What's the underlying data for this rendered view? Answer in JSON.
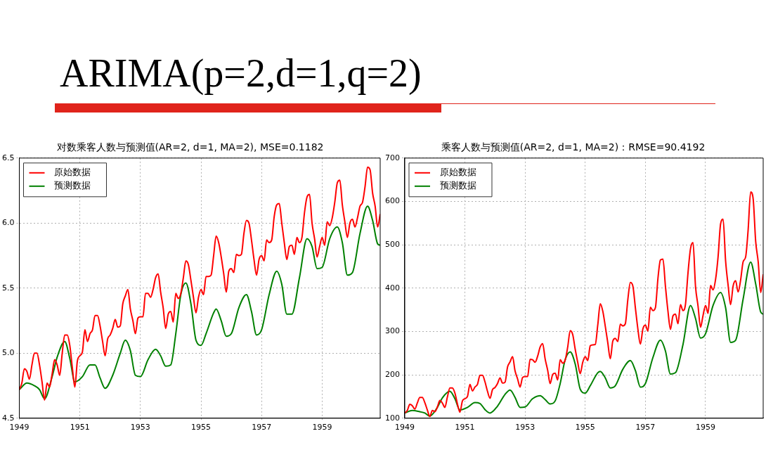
{
  "chart_data": [
    {
      "type": "line",
      "title": "对数乘客人数与预测值(AR=2, d=1, MA=2), MSE=0.1182",
      "annotations": [
        "ARIMA(p=2,d=1,q=2)"
      ],
      "x": [
        "1949-01",
        "1949-02",
        "1949-03",
        "1949-04",
        "1949-05",
        "1949-06",
        "1949-07",
        "1949-08",
        "1949-09",
        "1949-10",
        "1949-11",
        "1949-12",
        "1950-01",
        "1950-02",
        "1950-03",
        "1950-04",
        "1950-05",
        "1950-06",
        "1950-07",
        "1950-08",
        "1950-09",
        "1950-10",
        "1950-11",
        "1950-12",
        "1951-01",
        "1951-02",
        "1951-03",
        "1951-04",
        "1951-05",
        "1951-06",
        "1951-07",
        "1951-08",
        "1951-09",
        "1951-10",
        "1951-11",
        "1951-12",
        "1952-01",
        "1952-02",
        "1952-03",
        "1952-04",
        "1952-05",
        "1952-06",
        "1952-07",
        "1952-08",
        "1952-09",
        "1952-10",
        "1952-11",
        "1952-12",
        "1953-01",
        "1953-02",
        "1953-03",
        "1953-04",
        "1953-05",
        "1953-06",
        "1953-07",
        "1953-08",
        "1953-09",
        "1953-10",
        "1953-11",
        "1953-12",
        "1954-01",
        "1954-02",
        "1954-03",
        "1954-04",
        "1954-05",
        "1954-06",
        "1954-07",
        "1954-08",
        "1954-09",
        "1954-10",
        "1954-11",
        "1954-12",
        "1955-01",
        "1955-02",
        "1955-03",
        "1955-04",
        "1955-05",
        "1955-06",
        "1955-07",
        "1955-08",
        "1955-09",
        "1955-10",
        "1955-11",
        "1955-12",
        "1956-01",
        "1956-02",
        "1956-03",
        "1956-04",
        "1956-05",
        "1956-06",
        "1956-07",
        "1956-08",
        "1956-09",
        "1956-10",
        "1956-11",
        "1956-12",
        "1957-01",
        "1957-02",
        "1957-03",
        "1957-04",
        "1957-05",
        "1957-06",
        "1957-07",
        "1957-08",
        "1957-09",
        "1957-10",
        "1957-11",
        "1957-12",
        "1958-01",
        "1958-02",
        "1958-03",
        "1958-04",
        "1958-05",
        "1958-06",
        "1958-07",
        "1958-08",
        "1958-09",
        "1958-10",
        "1958-11",
        "1958-12",
        "1959-01",
        "1959-02",
        "1959-03",
        "1959-04",
        "1959-05",
        "1959-06",
        "1959-07",
        "1959-08",
        "1959-09",
        "1959-10",
        "1959-11",
        "1959-12",
        "1960-01",
        "1960-02",
        "1960-03",
        "1960-04",
        "1960-05",
        "1960-06",
        "1960-07",
        "1960-08",
        "1960-09",
        "1960-10",
        "1960-11",
        "1960-12"
      ],
      "series": [
        {
          "name": "原始数据",
          "color": "#ff0000",
          "values": [
            4.72,
            4.77,
            4.88,
            4.86,
            4.8,
            4.91,
            5.0,
            5.0,
            4.91,
            4.78,
            4.64,
            4.77,
            4.74,
            4.84,
            4.95,
            4.91,
            4.83,
            5.0,
            5.14,
            5.14,
            5.06,
            4.89,
            4.74,
            4.94,
            4.98,
            5.01,
            5.18,
            5.09,
            5.15,
            5.18,
            5.29,
            5.29,
            5.21,
            5.09,
            4.98,
            5.11,
            5.14,
            5.19,
            5.26,
            5.2,
            5.21,
            5.38,
            5.44,
            5.49,
            5.34,
            5.25,
            5.15,
            5.27,
            5.28,
            5.28,
            5.46,
            5.46,
            5.43,
            5.49,
            5.58,
            5.61,
            5.47,
            5.35,
            5.19,
            5.3,
            5.32,
            5.24,
            5.46,
            5.42,
            5.46,
            5.58,
            5.71,
            5.68,
            5.56,
            5.43,
            5.31,
            5.43,
            5.49,
            5.45,
            5.59,
            5.59,
            5.6,
            5.75,
            5.9,
            5.85,
            5.74,
            5.61,
            5.47,
            5.63,
            5.65,
            5.62,
            5.76,
            5.75,
            5.76,
            5.92,
            6.02,
            6.0,
            5.87,
            5.72,
            5.6,
            5.72,
            5.75,
            5.71,
            5.87,
            5.85,
            5.87,
            6.05,
            6.14,
            6.15,
            6.0,
            5.85,
            5.72,
            5.82,
            5.83,
            5.76,
            5.89,
            5.85,
            5.89,
            6.08,
            6.2,
            6.22,
            6.0,
            5.88,
            5.74,
            5.82,
            5.89,
            5.83,
            6.01,
            5.98,
            6.04,
            6.16,
            6.31,
            6.33,
            6.14,
            6.01,
            5.89,
            6.0,
            6.03,
            5.97,
            6.04,
            6.13,
            6.16,
            6.28,
            6.43,
            6.41,
            6.23,
            6.13,
            5.97,
            6.07
          ]
        },
        {
          "name": "预测数据",
          "color": "#008000",
          "x": [
            "1949-01",
            "1949-04",
            "1949-07",
            "1949-09",
            "1949-11",
            "1950-02",
            "1950-04",
            "1950-07",
            "1950-09",
            "1950-11",
            "1951-02",
            "1951-05",
            "1951-07",
            "1951-09",
            "1951-11",
            "1952-02",
            "1952-05",
            "1952-07",
            "1952-09",
            "1952-11",
            "1953-01",
            "1953-04",
            "1953-07",
            "1953-09",
            "1953-11",
            "1954-01",
            "1954-03",
            "1954-05",
            "1954-07",
            "1954-09",
            "1954-11",
            "1955-01",
            "1955-03",
            "1955-06",
            "1955-07",
            "1955-09",
            "1955-11",
            "1956-01",
            "1956-04",
            "1956-07",
            "1956-09",
            "1956-11",
            "1957-01",
            "1957-04",
            "1957-07",
            "1957-09",
            "1957-11",
            "1958-01",
            "1958-04",
            "1958-07",
            "1958-09",
            "1958-11",
            "1959-01",
            "1959-04",
            "1959-07",
            "1959-09",
            "1959-11",
            "1960-01",
            "1960-04",
            "1960-07",
            "1960-09",
            "1960-11",
            "1960-12"
          ],
          "values": [
            4.72,
            4.77,
            4.75,
            4.72,
            4.65,
            4.82,
            4.97,
            5.09,
            4.96,
            4.78,
            4.82,
            4.91,
            4.91,
            4.81,
            4.73,
            4.83,
            5.0,
            5.1,
            5.02,
            4.83,
            4.82,
            4.95,
            5.03,
            4.98,
            4.9,
            4.91,
            5.15,
            5.45,
            5.54,
            5.38,
            5.1,
            5.06,
            5.15,
            5.31,
            5.34,
            5.25,
            5.13,
            5.15,
            5.35,
            5.45,
            5.32,
            5.14,
            5.18,
            5.45,
            5.63,
            5.53,
            5.3,
            5.3,
            5.58,
            5.88,
            5.82,
            5.65,
            5.66,
            5.88,
            5.97,
            5.85,
            5.6,
            5.62,
            5.92,
            6.13,
            6.02,
            5.84,
            5.83
          ]
        }
      ],
      "xlim": [
        "1949-01",
        "1960-12"
      ],
      "xticks": [
        "1949",
        "1951",
        "1953",
        "1955",
        "1957",
        "1959"
      ],
      "ylim": [
        4.5,
        6.5
      ],
      "yticks": [
        4.5,
        {
          "value": 5,
          "label": "5.0"
        },
        5.5,
        {
          "value": 6,
          "label": "6.0"
        },
        6.5
      ],
      "grid": true,
      "legend": "top left",
      "marker": "none",
      "line_style": "solid"
    },
    {
      "type": "line",
      "title": "乘客人数与预测值(AR=2, d=1, MA=2)：RMSE=90.4192",
      "x": [
        "1949-01",
        "1949-02",
        "1949-03",
        "1949-04",
        "1949-05",
        "1949-06",
        "1949-07",
        "1949-08",
        "1949-09",
        "1949-10",
        "1949-11",
        "1949-12",
        "1950-01",
        "1950-02",
        "1950-03",
        "1950-04",
        "1950-05",
        "1950-06",
        "1950-07",
        "1950-08",
        "1950-09",
        "1950-10",
        "1950-11",
        "1950-12",
        "1951-01",
        "1951-02",
        "1951-03",
        "1951-04",
        "1951-05",
        "1951-06",
        "1951-07",
        "1951-08",
        "1951-09",
        "1951-10",
        "1951-11",
        "1951-12",
        "1952-01",
        "1952-02",
        "1952-03",
        "1952-04",
        "1952-05",
        "1952-06",
        "1952-07",
        "1952-08",
        "1952-09",
        "1952-10",
        "1952-11",
        "1952-12",
        "1953-01",
        "1953-02",
        "1953-03",
        "1953-04",
        "1953-05",
        "1953-06",
        "1953-07",
        "1953-08",
        "1953-09",
        "1953-10",
        "1953-11",
        "1953-12",
        "1954-01",
        "1954-02",
        "1954-03",
        "1954-04",
        "1954-05",
        "1954-06",
        "1954-07",
        "1954-08",
        "1954-09",
        "1954-10",
        "1954-11",
        "1954-12",
        "1955-01",
        "1955-02",
        "1955-03",
        "1955-04",
        "1955-05",
        "1955-06",
        "1955-07",
        "1955-08",
        "1955-09",
        "1955-10",
        "1955-11",
        "1955-12",
        "1956-01",
        "1956-02",
        "1956-03",
        "1956-04",
        "1956-05",
        "1956-06",
        "1956-07",
        "1956-08",
        "1956-09",
        "1956-10",
        "1956-11",
        "1956-12",
        "1957-01",
        "1957-02",
        "1957-03",
        "1957-04",
        "1957-05",
        "1957-06",
        "1957-07",
        "1957-08",
        "1957-09",
        "1957-10",
        "1957-11",
        "1957-12",
        "1958-01",
        "1958-02",
        "1958-03",
        "1958-04",
        "1958-05",
        "1958-06",
        "1958-07",
        "1958-08",
        "1958-09",
        "1958-10",
        "1958-11",
        "1958-12",
        "1959-01",
        "1959-02",
        "1959-03",
        "1959-04",
        "1959-05",
        "1959-06",
        "1959-07",
        "1959-08",
        "1959-09",
        "1959-10",
        "1959-11",
        "1959-12",
        "1960-01",
        "1960-02",
        "1960-03",
        "1960-04",
        "1960-05",
        "1960-06",
        "1960-07",
        "1960-08",
        "1960-09",
        "1960-10",
        "1960-11",
        "1960-12"
      ],
      "series": [
        {
          "name": "原始数据",
          "color": "#ff0000",
          "values": [
            112,
            118,
            132,
            129,
            121,
            135,
            148,
            148,
            136,
            119,
            104,
            118,
            115,
            126,
            141,
            135,
            125,
            149,
            170,
            170,
            158,
            133,
            114,
            140,
            145,
            150,
            178,
            163,
            172,
            178,
            199,
            199,
            184,
            162,
            146,
            166,
            171,
            180,
            193,
            181,
            183,
            218,
            230,
            242,
            209,
            191,
            172,
            194,
            196,
            196,
            236,
            235,
            229,
            243,
            264,
            272,
            237,
            211,
            180,
            201,
            204,
            188,
            235,
            227,
            234,
            264,
            302,
            293,
            259,
            229,
            203,
            229,
            242,
            233,
            267,
            269,
            270,
            315,
            364,
            347,
            312,
            274,
            237,
            278,
            284,
            277,
            317,
            313,
            318,
            374,
            413,
            405,
            355,
            306,
            271,
            306,
            315,
            301,
            356,
            348,
            355,
            422,
            465,
            467,
            404,
            347,
            305,
            336,
            340,
            318,
            362,
            348,
            363,
            435,
            491,
            505,
            404,
            359,
            310,
            337,
            360,
            342,
            406,
            396,
            420,
            472,
            548,
            559,
            463,
            407,
            362,
            405,
            417,
            391,
            419,
            461,
            472,
            535,
            622,
            606,
            508,
            461,
            390,
            432
          ]
        },
        {
          "name": "预测数据",
          "color": "#008000",
          "x": [
            "1949-01",
            "1949-04",
            "1949-07",
            "1949-09",
            "1949-11",
            "1950-02",
            "1950-04",
            "1950-07",
            "1950-09",
            "1950-11",
            "1951-02",
            "1951-05",
            "1951-07",
            "1951-09",
            "1951-11",
            "1952-02",
            "1952-05",
            "1952-07",
            "1952-09",
            "1952-11",
            "1953-01",
            "1953-04",
            "1953-07",
            "1953-09",
            "1953-11",
            "1954-01",
            "1954-03",
            "1954-05",
            "1954-07",
            "1954-09",
            "1954-11",
            "1955-01",
            "1955-03",
            "1955-06",
            "1955-07",
            "1955-09",
            "1955-11",
            "1956-01",
            "1956-04",
            "1956-07",
            "1956-09",
            "1956-11",
            "1957-01",
            "1957-04",
            "1957-07",
            "1957-09",
            "1957-11",
            "1958-01",
            "1958-04",
            "1958-07",
            "1958-09",
            "1958-11",
            "1959-01",
            "1959-04",
            "1959-07",
            "1959-09",
            "1959-11",
            "1960-01",
            "1960-04",
            "1960-07",
            "1960-09",
            "1960-11",
            "1960-12"
          ],
          "values": [
            112,
            118,
            115,
            112,
            105,
            125,
            147,
            162,
            145,
            119,
            125,
            136,
            134,
            120,
            112,
            128,
            155,
            165,
            148,
            125,
            126,
            145,
            152,
            143,
            133,
            140,
            180,
            235,
            253,
            225,
            167,
            158,
            175,
            205,
            208,
            193,
            170,
            175,
            213,
            233,
            210,
            172,
            180,
            240,
            280,
            255,
            202,
            205,
            270,
            360,
            330,
            285,
            295,
            360,
            390,
            355,
            275,
            280,
            375,
            460,
            410,
            345,
            340
          ]
        }
      ],
      "xlim": [
        "1949-01",
        "1960-12"
      ],
      "xticks": [
        "1949",
        "1951",
        "1953",
        "1955",
        "1957",
        "1959"
      ],
      "ylim": [
        100,
        700
      ],
      "yticks": [
        100,
        200,
        300,
        400,
        500,
        600,
        700
      ],
      "grid": true,
      "legend": "top left",
      "marker": "none",
      "line_style": "solid"
    }
  ]
}
